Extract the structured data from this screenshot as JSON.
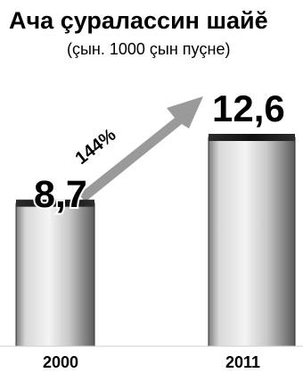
{
  "chart_data": {
    "type": "bar",
    "title": "Ача çуралассин шайĕ",
    "subtitle": "(çын. 1000 çын пуçне)",
    "categories": [
      "2000",
      "2011"
    ],
    "values": [
      8.7,
      12.6
    ],
    "value_labels": [
      "8,7",
      "12,6"
    ],
    "annotations": [
      {
        "text": "144%",
        "from_category": "2000",
        "to_category": "2011"
      }
    ],
    "colors": {
      "bar_light": "#f6f6f6",
      "bar_mid": "#bdbdbd",
      "bar_dark": "#4f4f4f",
      "arrow": "#9a9a9a",
      "text": "#000000"
    }
  }
}
